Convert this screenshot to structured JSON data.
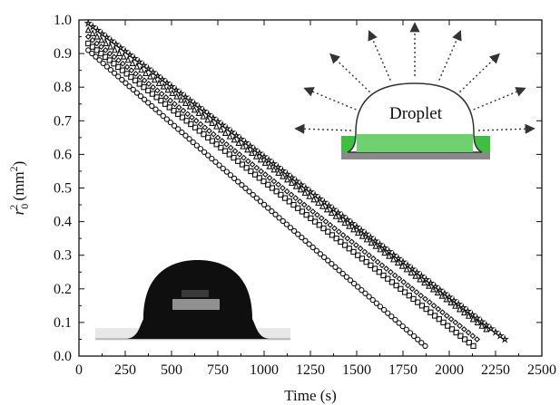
{
  "chart_data": {
    "type": "scatter",
    "title": "",
    "xlabel": "Time (s)",
    "ylabel_base": "r",
    "ylabel_sub": "0",
    "ylabel_sup": "2",
    "ylabel_unit_pre": " (mm",
    "ylabel_unit_sup": "2",
    "ylabel_unit_post": ")",
    "xlim": [
      0,
      2500
    ],
    "ylim": [
      0.0,
      1.0
    ],
    "xticks": [
      "0",
      "250",
      "500",
      "750",
      "1000",
      "1250",
      "1500",
      "1750",
      "2000",
      "2250",
      "2500"
    ],
    "yticks": [
      "0.0",
      "0.1",
      "0.2",
      "0.3",
      "0.4",
      "0.5",
      "0.6",
      "0.7",
      "0.8",
      "0.9",
      "1.0"
    ],
    "grid": false,
    "series": [
      {
        "marker": "star",
        "points": [
          [
            50,
            0.99
          ],
          [
            2300,
            0.05
          ]
        ]
      },
      {
        "marker": "triangle",
        "points": [
          [
            50,
            0.97
          ],
          [
            2200,
            0.08
          ]
        ]
      },
      {
        "marker": "diamond",
        "points": [
          [
            50,
            0.95
          ],
          [
            2150,
            0.05
          ]
        ]
      },
      {
        "marker": "square",
        "points": [
          [
            50,
            0.93
          ],
          [
            2130,
            0.03
          ]
        ]
      },
      {
        "marker": "circle",
        "points": [
          [
            50,
            0.91
          ],
          [
            1870,
            0.03
          ]
        ]
      }
    ],
    "inset_schematic": {
      "label": "Droplet",
      "substrate_color": "#3fbf3f",
      "arrow_count": 9
    },
    "inset_photo": {
      "description": "droplet"
    }
  }
}
